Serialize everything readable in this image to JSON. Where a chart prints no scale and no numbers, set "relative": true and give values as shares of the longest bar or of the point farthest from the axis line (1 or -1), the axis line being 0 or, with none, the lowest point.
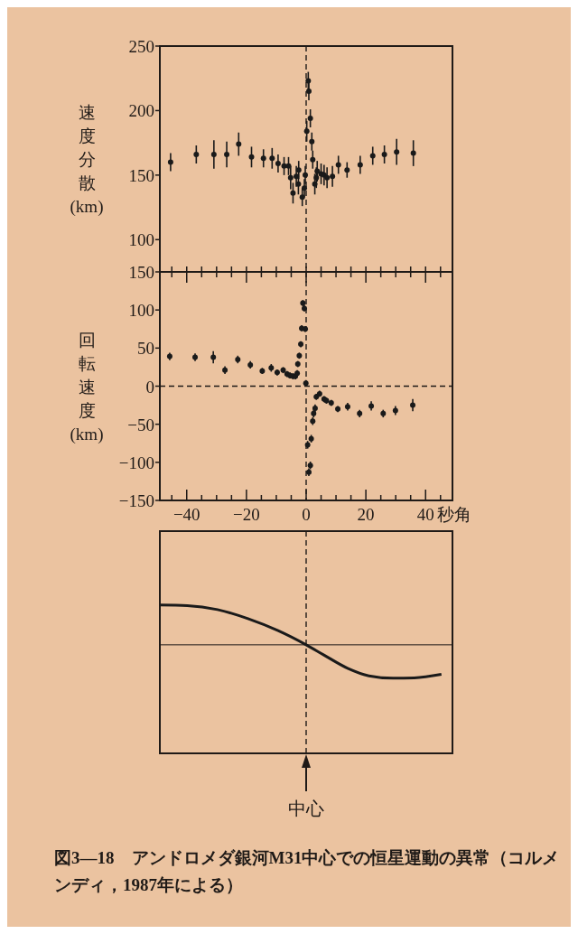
{
  "chart_data": [
    {
      "type": "scatter",
      "ylabel": "速度分散(km)",
      "xlim": [
        -49,
        49
      ],
      "ylim": [
        75,
        250
      ],
      "yticks": [
        100,
        150,
        200,
        250
      ],
      "tick_labels": "y",
      "marker": "circle",
      "xticks": [
        {
          "value": -45,
          "label": null
        },
        {
          "value": -40,
          "label": null
        },
        {
          "value": -35,
          "label": null
        },
        {
          "value": -30,
          "label": null
        },
        {
          "value": -25,
          "label": null
        },
        {
          "value": -20,
          "label": null
        },
        {
          "value": -15,
          "label": null
        },
        {
          "value": -10,
          "label": null
        },
        {
          "value": -5,
          "label": null
        },
        {
          "value": 0,
          "label": null
        },
        {
          "value": 5,
          "label": null
        },
        {
          "value": 10,
          "label": null
        },
        {
          "value": 15,
          "label": null
        },
        {
          "value": 20,
          "label": null
        },
        {
          "value": 25,
          "label": null
        },
        {
          "value": 30,
          "label": null
        },
        {
          "value": 35,
          "label": null
        },
        {
          "value": 40,
          "label": null
        },
        {
          "value": 45,
          "label": null
        }
      ],
      "ref_lines": [
        {
          "axis": "x",
          "value": 0,
          "line_style": "dashed"
        }
      ],
      "series": [
        {
          "color": "#1a1a1a",
          "x": [
            -45.4,
            -36.8,
            -30.9,
            -26.6,
            -22.6,
            -18.3,
            -14.3,
            -11.4,
            -9.4,
            -7.4,
            -5.9,
            -5.2,
            -4.4,
            -3.3,
            -2.6,
            -2.5,
            -1.3,
            -0.6,
            -0.3,
            0.2,
            0.7,
            0.9,
            1.4,
            1.9,
            2.2,
            2.9,
            3.4,
            3.7,
            5.0,
            6.0,
            7.0,
            8.8,
            10.8,
            13.7,
            18.1,
            22.3,
            26.2,
            30.3,
            35.9
          ],
          "values": [
            160,
            166,
            166,
            166,
            174,
            164,
            163,
            163,
            159,
            157,
            157,
            148,
            136,
            149,
            143,
            154,
            133,
            140,
            150,
            184,
            223,
            215,
            194,
            176,
            162,
            143,
            148,
            153,
            151,
            150,
            148,
            149,
            158,
            154,
            158,
            165,
            166,
            168,
            167
          ],
          "errors": [
            7,
            7,
            11,
            10,
            9,
            8,
            7,
            8,
            7,
            7,
            7,
            9,
            8,
            8,
            8,
            7,
            7,
            7,
            7,
            8,
            7,
            7,
            7,
            7,
            7,
            8,
            8,
            8,
            8,
            8,
            8,
            8,
            7,
            6,
            7,
            7,
            7,
            10,
            10
          ]
        }
      ]
    },
    {
      "type": "scatter",
      "ylabel": "回転速度(km)",
      "xlabel": "秒角",
      "xlim": [
        -49,
        49
      ],
      "ylim": [
        -150,
        150
      ],
      "yticks": [
        -150,
        -100,
        -50,
        0,
        50,
        100,
        150
      ],
      "marker": "circle",
      "xticks": [
        {
          "value": -45,
          "label": null
        },
        -40,
        {
          "value": -35,
          "label": null
        },
        {
          "value": -30,
          "label": null
        },
        {
          "value": -25,
          "label": null
        },
        -20,
        {
          "value": -15,
          "label": null
        },
        {
          "value": -10,
          "label": null
        },
        {
          "value": -5,
          "label": null
        },
        0,
        {
          "value": 5,
          "label": null
        },
        {
          "value": 10,
          "label": null
        },
        {
          "value": 15,
          "label": null
        },
        20,
        {
          "value": 25,
          "label": null
        },
        {
          "value": 30,
          "label": null
        },
        {
          "value": 35,
          "label": null
        },
        40,
        {
          "value": 45,
          "label": null
        }
      ],
      "ref_lines": [
        {
          "axis": "x",
          "value": 0,
          "line_style": "dashed"
        },
        {
          "axis": "y",
          "value": 0,
          "line_style": "dashed"
        }
      ],
      "series": [
        {
          "color": "#1a1a1a",
          "x": [
            -45.7,
            -37.2,
            -31.1,
            -27.2,
            -22.9,
            -18.7,
            -14.7,
            -11.7,
            -9.7,
            -7.7,
            -6.4,
            -5.4,
            -4.4,
            -3.6,
            -3.0,
            -2.8,
            -2.3,
            -1.8,
            -1.5,
            -1.1,
            -0.6,
            -0.3,
            -0.1,
            0.5,
            0.9,
            1.4,
            1.7,
            2.2,
            2.5,
            3.0,
            3.4,
            4.5,
            6.0,
            6.8,
            8.4,
            10.6,
            13.9,
            17.9,
            21.8,
            25.8,
            29.9,
            35.7
          ],
          "values": [
            39,
            38,
            38,
            21,
            35,
            28,
            20,
            24,
            18,
            21,
            16,
            14,
            13,
            13,
            17,
            29,
            40,
            55,
            76,
            109,
            102,
            75,
            4,
            -77,
            -113,
            -104,
            -69,
            -46,
            -36,
            -29,
            -14,
            -10,
            -17,
            -19,
            -22,
            -30,
            -27,
            -36,
            -26,
            -36,
            -32,
            -25
          ],
          "errors": [
            5,
            5,
            8,
            5,
            5,
            5,
            4,
            5,
            4,
            4,
            4,
            4,
            4,
            4,
            4,
            4,
            4,
            4,
            4,
            4,
            4,
            4,
            4,
            5,
            5,
            5,
            5,
            5,
            5,
            5,
            4,
            4,
            4,
            4,
            4,
            4,
            5,
            5,
            6,
            5,
            6,
            8
          ]
        }
      ]
    },
    {
      "type": "line",
      "relative": true,
      "xlim": [
        -49,
        49
      ],
      "tick_labels": false,
      "marker": "none",
      "line_style": "solid",
      "ref_lines": [
        {
          "axis": "x",
          "value": 0,
          "label": "中心",
          "line_style": "dashed"
        }
      ],
      "annotations": [
        "図3—18　アンドロメダ銀河M31中心での恒星運動の異常（コルメンディ，1987年による）"
      ],
      "series": [
        {
          "color": "#1a1a1a",
          "x": [
            -49,
            -39.8,
            -29.7,
            -19.5,
            -9.4,
            0,
            5.8,
            13.9,
            21,
            29.1,
            36.2,
            45.3
          ],
          "values": [
            1,
            0.985,
            0.886,
            0.659,
            0.356,
            0,
            -0.25,
            -0.59,
            -0.78,
            -0.84,
            -0.83,
            -0.74
          ]
        }
      ]
    }
  ]
}
